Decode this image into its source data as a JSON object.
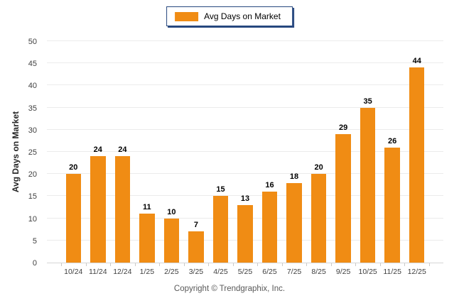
{
  "legend": {
    "label": "Avg Days on Market"
  },
  "y_axis": {
    "title": "Avg Days on Market"
  },
  "footer": {
    "copyright": "Copyright © Trendgraphix, Inc."
  },
  "colors": {
    "bar": "#F08C14",
    "gridline": "#EBEBEB",
    "baseline": "#D6D6D6",
    "tick": "#C9C9C9",
    "axis_label_text": "#3F3F3F",
    "value_label_text": "#000000",
    "legend_border": "#26477E",
    "footer_text": "#595959"
  },
  "chart_data": {
    "type": "bar",
    "title": "",
    "categories": [
      "10/24",
      "11/24",
      "12/24",
      "1/25",
      "2/25",
      "3/25",
      "4/25",
      "5/25",
      "6/25",
      "7/25",
      "8/25",
      "9/25",
      "10/25",
      "11/25",
      "12/25"
    ],
    "values": [
      20,
      24,
      24,
      11,
      10,
      7,
      15,
      13,
      16,
      18,
      20,
      29,
      35,
      26,
      44
    ],
    "series_name": "Avg Days on Market",
    "xlabel": "",
    "ylabel": "Avg Days on Market",
    "ylim": [
      0,
      50
    ],
    "ytick_step": 5,
    "ytick_labels": [
      "0",
      "5",
      "10",
      "15",
      "20",
      "25",
      "30",
      "35",
      "40",
      "45",
      "50"
    ],
    "grid": true,
    "value_labels": true,
    "legend_position": "top-center",
    "bar_color": "#F08C14"
  }
}
